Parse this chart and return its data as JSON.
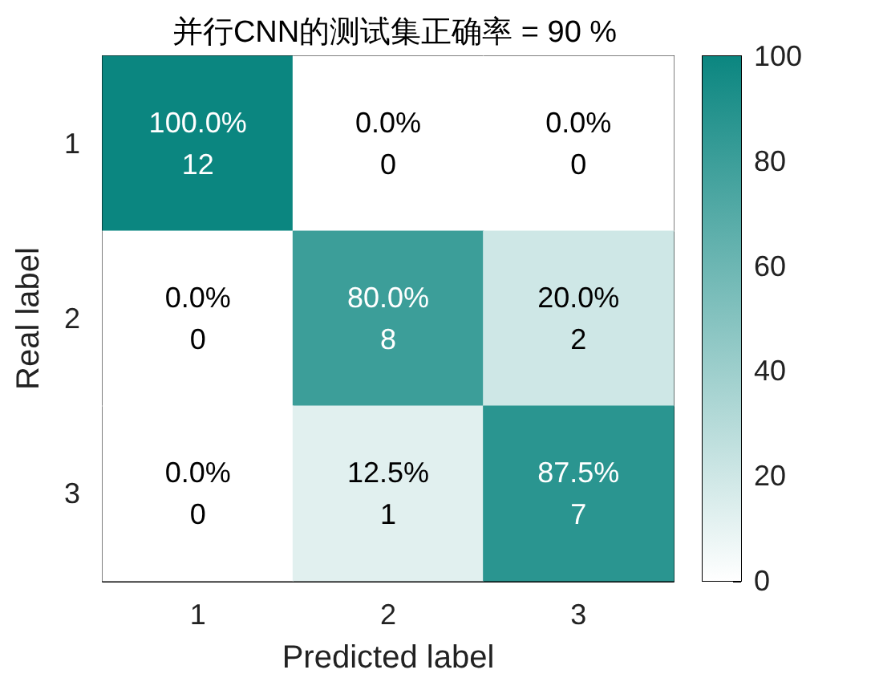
{
  "chart_data": {
    "type": "heatmap",
    "title": "并行CNN的测试集正确率 = 90 %",
    "xlabel": "Predicted label",
    "ylabel": "Real label",
    "categories": [
      "1",
      "2",
      "3"
    ],
    "y_categories": [
      "1",
      "2",
      "3"
    ],
    "cells": [
      [
        100,
        0,
        0
      ],
      [
        0,
        80,
        20
      ],
      [
        0,
        12.5,
        87.5
      ]
    ],
    "cell_labels": [
      [
        "100.0%\n12",
        "0.0%\n0",
        "0.0%\n0"
      ],
      [
        "0.0%\n0",
        "80.0%\n8",
        "20.0%\n2"
      ],
      [
        "0.0%\n0",
        "12.5%\n1",
        "87.5%\n7"
      ]
    ],
    "clim": [
      0,
      100
    ],
    "cticks": [
      0,
      20,
      40,
      60,
      80,
      100
    ]
  }
}
